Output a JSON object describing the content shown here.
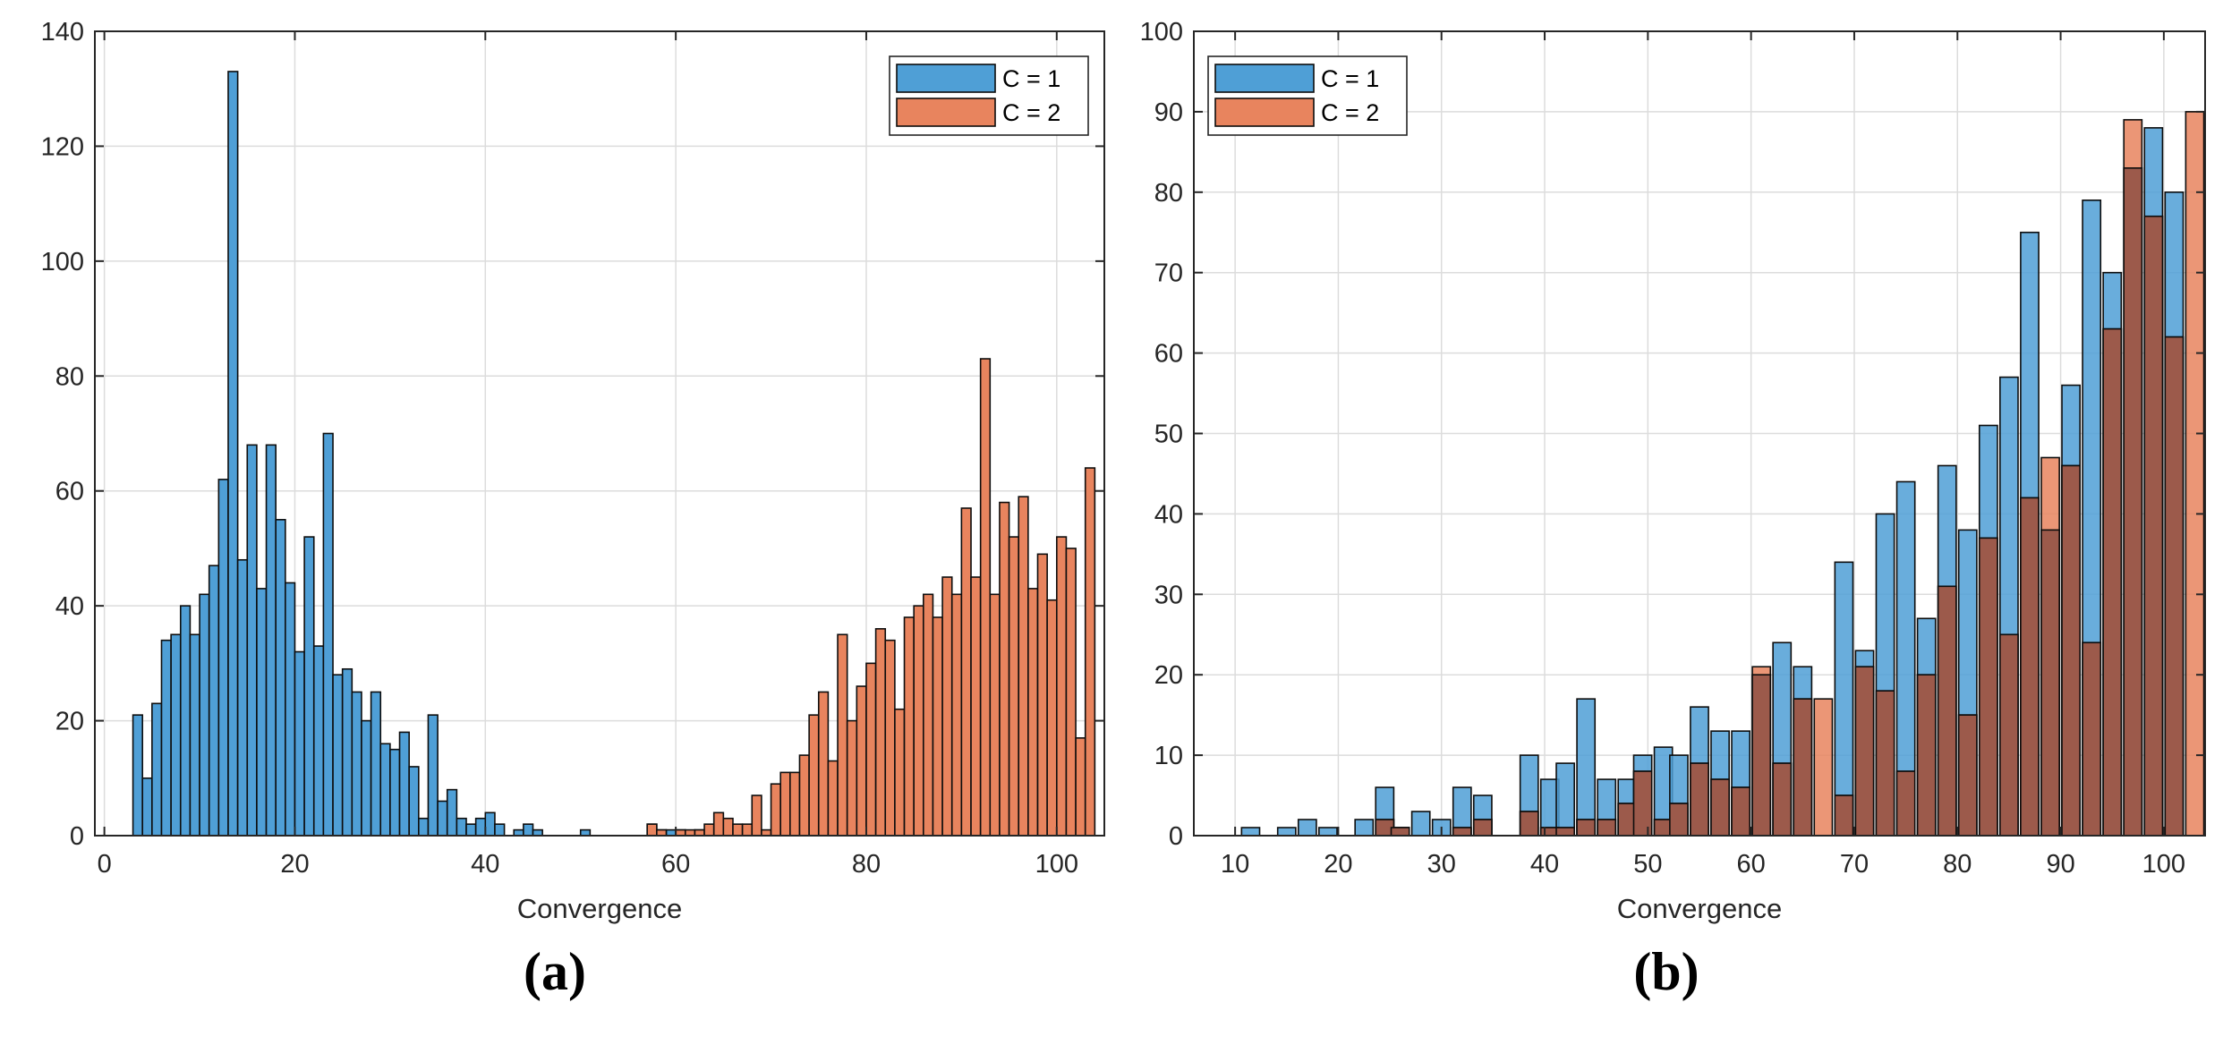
{
  "colors": {
    "c1": "#4f9fd6",
    "c2": "#e8845e",
    "overlap": "#9c5a4b",
    "edge": "#0d0d0d",
    "grid": "#dcdcdc",
    "frame": "#262626"
  },
  "chart_data": [
    {
      "type": "histogram",
      "panel_label": "(a)",
      "xlabel": "Convergence",
      "ylabel": "",
      "xlim": [
        -1,
        105
      ],
      "ylim": [
        0,
        140
      ],
      "xticks": [
        0,
        20,
        40,
        60,
        80,
        100
      ],
      "yticks": [
        0,
        20,
        40,
        60,
        80,
        100,
        120,
        140
      ],
      "grid": true,
      "legend": {
        "position": "top-right",
        "entries": [
          "C = 1",
          "C = 2"
        ]
      },
      "series": [
        {
          "name": "C = 1",
          "color": "#4f9fd6",
          "bin_width": 1,
          "bins": [
            [
              3.5,
              21
            ],
            [
              4.5,
              10
            ],
            [
              5.5,
              23
            ],
            [
              6.5,
              34
            ],
            [
              7.5,
              35
            ],
            [
              8.5,
              40
            ],
            [
              9.5,
              35
            ],
            [
              10.5,
              42
            ],
            [
              11.5,
              47
            ],
            [
              12.5,
              62
            ],
            [
              13.5,
              133
            ],
            [
              14.5,
              48
            ],
            [
              15.5,
              68
            ],
            [
              16.5,
              43
            ],
            [
              17.5,
              68
            ],
            [
              18.5,
              55
            ],
            [
              19.5,
              44
            ],
            [
              20.5,
              32
            ],
            [
              21.5,
              52
            ],
            [
              22.5,
              33
            ],
            [
              23.5,
              70
            ],
            [
              24.5,
              28
            ],
            [
              25.5,
              29
            ],
            [
              26.5,
              25
            ],
            [
              27.5,
              20
            ],
            [
              28.5,
              25
            ],
            [
              29.5,
              16
            ],
            [
              30.5,
              15
            ],
            [
              31.5,
              18
            ],
            [
              32.5,
              12
            ],
            [
              33.5,
              3
            ],
            [
              34.5,
              21
            ],
            [
              35.5,
              6
            ],
            [
              36.5,
              8
            ],
            [
              37.5,
              3
            ],
            [
              38.5,
              2
            ],
            [
              39.5,
              3
            ],
            [
              40.5,
              4
            ],
            [
              41.5,
              2
            ],
            [
              43.5,
              1
            ],
            [
              44.5,
              2
            ],
            [
              45.5,
              1
            ],
            [
              50.5,
              1
            ],
            [
              57.5,
              2
            ],
            [
              58.5,
              1
            ],
            [
              59.5,
              1
            ],
            [
              60.5,
              1
            ],
            [
              62.5,
              1
            ],
            [
              66.5,
              1
            ]
          ]
        },
        {
          "name": "C = 2",
          "color": "#e8845e",
          "bin_width": 1,
          "bins": [
            [
              57.5,
              2
            ],
            [
              58.5,
              1
            ],
            [
              60.5,
              1
            ],
            [
              61.5,
              1
            ],
            [
              62.5,
              1
            ],
            [
              63.5,
              2
            ],
            [
              64.5,
              4
            ],
            [
              65.5,
              3
            ],
            [
              66.5,
              2
            ],
            [
              67.5,
              2
            ],
            [
              68.5,
              7
            ],
            [
              69.5,
              1
            ],
            [
              70.5,
              9
            ],
            [
              71.5,
              11
            ],
            [
              72.5,
              11
            ],
            [
              73.5,
              14
            ],
            [
              74.5,
              21
            ],
            [
              75.5,
              25
            ],
            [
              76.5,
              13
            ],
            [
              77.5,
              35
            ],
            [
              78.5,
              20
            ],
            [
              79.5,
              26
            ],
            [
              80.5,
              30
            ],
            [
              81.5,
              36
            ],
            [
              82.5,
              34
            ],
            [
              83.5,
              22
            ],
            [
              84.5,
              38
            ],
            [
              85.5,
              40
            ],
            [
              86.5,
              42
            ],
            [
              87.5,
              38
            ],
            [
              88.5,
              45
            ],
            [
              89.5,
              42
            ],
            [
              90.5,
              57
            ],
            [
              91.5,
              45
            ],
            [
              92.5,
              83
            ],
            [
              93.5,
              42
            ],
            [
              94.5,
              58
            ],
            [
              95.5,
              52
            ],
            [
              96.5,
              59
            ],
            [
              97.5,
              43
            ],
            [
              98.5,
              49
            ],
            [
              99.5,
              41
            ],
            [
              100.5,
              52
            ],
            [
              101.5,
              50
            ],
            [
              102.5,
              17
            ],
            [
              103.5,
              64
            ]
          ]
        }
      ]
    },
    {
      "type": "histogram",
      "panel_label": "(b)",
      "xlabel": "Convergence",
      "ylabel": "",
      "xlim": [
        6,
        104
      ],
      "ylim": [
        0,
        100
      ],
      "xticks": [
        10,
        20,
        30,
        40,
        50,
        60,
        70,
        80,
        90,
        100
      ],
      "yticks": [
        0,
        10,
        20,
        30,
        40,
        50,
        60,
        70,
        80,
        90,
        100
      ],
      "grid": true,
      "legend": {
        "position": "top-left",
        "entries": [
          "C = 1",
          "C = 2"
        ]
      },
      "series": [
        {
          "name": "C = 1",
          "color": "#4f9fd6",
          "bin_width": 1.75,
          "bins": [
            [
              11.5,
              1
            ],
            [
              15,
              1
            ],
            [
              17,
              2
            ],
            [
              19,
              1
            ],
            [
              22.5,
              2
            ],
            [
              24.5,
              6
            ],
            [
              26,
              1
            ],
            [
              28,
              3
            ],
            [
              30,
              2
            ],
            [
              32,
              6
            ],
            [
              34,
              5
            ],
            [
              38.5,
              10
            ],
            [
              40.5,
              7
            ],
            [
              42,
              9
            ],
            [
              44,
              17
            ],
            [
              46,
              7
            ],
            [
              48,
              7
            ],
            [
              49.5,
              10
            ],
            [
              51.5,
              11
            ],
            [
              53,
              10
            ],
            [
              55,
              16
            ],
            [
              57,
              13
            ],
            [
              59,
              13
            ],
            [
              61,
              20
            ],
            [
              63,
              24
            ],
            [
              65,
              21
            ],
            [
              69,
              34
            ],
            [
              71,
              23
            ],
            [
              73,
              40
            ],
            [
              75,
              44
            ],
            [
              77,
              27
            ],
            [
              79,
              46
            ],
            [
              81,
              38
            ],
            [
              83,
              51
            ],
            [
              85,
              57
            ],
            [
              87,
              75
            ],
            [
              89,
              38
            ],
            [
              91,
              56
            ],
            [
              93,
              79
            ],
            [
              95,
              70
            ],
            [
              97,
              83
            ],
            [
              99,
              88
            ],
            [
              101,
              80
            ]
          ]
        },
        {
          "name": "C = 2",
          "color": "#e8845e",
          "bin_width": 1.75,
          "bins": [
            [
              24.5,
              2
            ],
            [
              26,
              1
            ],
            [
              32,
              1
            ],
            [
              34,
              2
            ],
            [
              38.5,
              3
            ],
            [
              40.5,
              1
            ],
            [
              42,
              1
            ],
            [
              44,
              2
            ],
            [
              46,
              2
            ],
            [
              48,
              4
            ],
            [
              49.5,
              8
            ],
            [
              51.5,
              2
            ],
            [
              53,
              4
            ],
            [
              55,
              9
            ],
            [
              57,
              7
            ],
            [
              59,
              6
            ],
            [
              61,
              21
            ],
            [
              63,
              9
            ],
            [
              65,
              17
            ],
            [
              67,
              17
            ],
            [
              69,
              5
            ],
            [
              71,
              21
            ],
            [
              73,
              18
            ],
            [
              75,
              8
            ],
            [
              77,
              20
            ],
            [
              79,
              31
            ],
            [
              81,
              15
            ],
            [
              83,
              37
            ],
            [
              85,
              25
            ],
            [
              87,
              42
            ],
            [
              89,
              47
            ],
            [
              91,
              46
            ],
            [
              93,
              24
            ],
            [
              95,
              63
            ],
            [
              97,
              89
            ],
            [
              99,
              77
            ],
            [
              101,
              62
            ],
            [
              103,
              90
            ]
          ]
        }
      ]
    }
  ]
}
